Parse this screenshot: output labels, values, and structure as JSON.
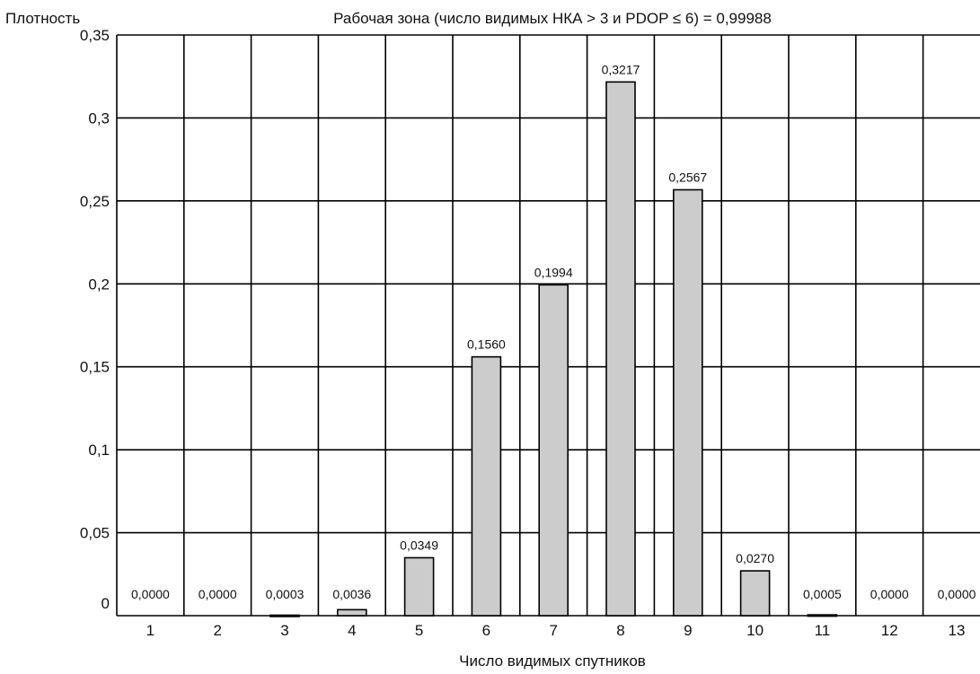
{
  "chart_data": {
    "type": "bar",
    "title": "Рабочая зона (число видимых НКА > 3 и PDOP ≤ 6) = 0,99988",
    "ylabel": "Плотность",
    "xlabel": "Число видимых спутников",
    "categories": [
      "1",
      "2",
      "3",
      "4",
      "5",
      "6",
      "7",
      "8",
      "9",
      "10",
      "11",
      "12",
      "13"
    ],
    "values": [
      0.0,
      0.0,
      0.0003,
      0.0036,
      0.0349,
      0.156,
      0.1994,
      0.3217,
      0.2567,
      0.027,
      0.0005,
      0.0,
      0.0
    ],
    "data_labels": [
      "0,0000",
      "0,0000",
      "0,0003",
      "0,0036",
      "0,0349",
      "0,1560",
      "0,1994",
      "0,3217",
      "0,2567",
      "0,0270",
      "0,0005",
      "0,0000",
      "0,0000"
    ],
    "yticks": [
      0,
      0.05,
      0.1,
      0.15,
      0.2,
      0.25,
      0.3,
      0.35
    ],
    "ytick_labels": [
      "0",
      "0,05",
      "0,1",
      "0,15",
      "0,2",
      "0,25",
      "0,3",
      "0,35"
    ],
    "ylim": [
      0,
      0.35
    ],
    "grid": true,
    "legend": "none",
    "bar_color": "#cccccc"
  }
}
